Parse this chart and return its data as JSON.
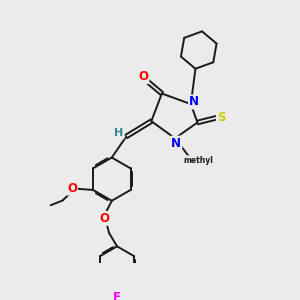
{
  "bg_color": "#ebebeb",
  "bond_color": "#1a1a1a",
  "atom_colors": {
    "O": "#ff0000",
    "N": "#0000ee",
    "S": "#cccc00",
    "F": "#ee00ee",
    "H": "#2e8b8b",
    "C": "#1a1a1a"
  },
  "lw": 1.4
}
